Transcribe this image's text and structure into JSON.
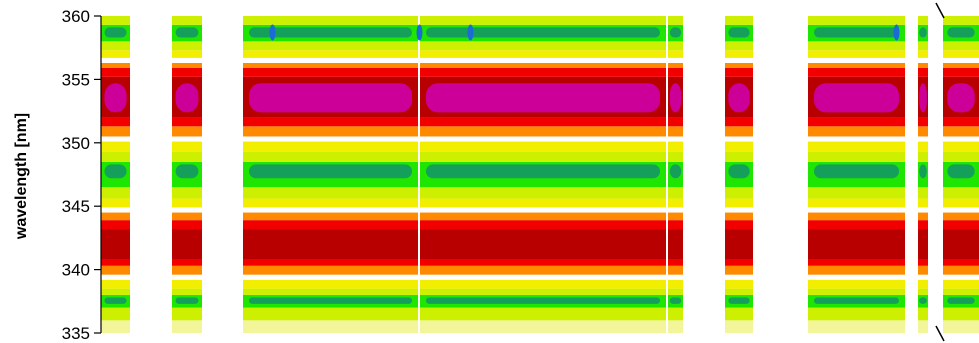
{
  "chart_data": {
    "type": "heatmap",
    "title": "",
    "xlabel": "",
    "ylabel": "wavelength [nm]",
    "ylim": [
      335,
      360
    ],
    "yticks": [
      335,
      340,
      345,
      350,
      355,
      360
    ],
    "ytick_labels": [
      "335",
      "340",
      "345",
      "350",
      "355",
      "360"
    ],
    "grid": false,
    "legend": "none",
    "axis_break": true,
    "colors": {
      "white": "#ffffff",
      "pale_yellow": "#f3f59a",
      "yellow": "#f2ee00",
      "yellow_green": "#cdf000",
      "green": "#1ee600",
      "dark_green": "#14a05a",
      "orange": "#ff8a00",
      "red": "#f20000",
      "dark_red": "#b90000",
      "magenta": "#cc0099",
      "blue": "#1a6bd6"
    },
    "bands": [
      {
        "from": 335.0,
        "to": 336.0,
        "level": "pale_yellow"
      },
      {
        "from": 336.0,
        "to": 337.0,
        "level": "yellow_green"
      },
      {
        "from": 337.0,
        "to": 338.0,
        "level": "green"
      },
      {
        "from": 338.0,
        "to": 338.5,
        "level": "yellow_green"
      },
      {
        "from": 338.5,
        "to": 339.2,
        "level": "yellow"
      },
      {
        "from": 339.2,
        "to": 339.6,
        "level": "white"
      },
      {
        "from": 339.6,
        "to": 340.3,
        "level": "orange"
      },
      {
        "from": 340.3,
        "to": 340.8,
        "level": "red"
      },
      {
        "from": 340.8,
        "to": 343.2,
        "level": "dark_red"
      },
      {
        "from": 343.2,
        "to": 343.9,
        "level": "red"
      },
      {
        "from": 343.9,
        "to": 344.5,
        "level": "orange"
      },
      {
        "from": 344.5,
        "to": 344.9,
        "level": "white"
      },
      {
        "from": 344.9,
        "to": 345.6,
        "level": "yellow"
      },
      {
        "from": 345.6,
        "to": 346.5,
        "level": "yellow_green"
      },
      {
        "from": 346.5,
        "to": 348.5,
        "level": "green"
      },
      {
        "from": 348.5,
        "to": 349.3,
        "level": "yellow_green"
      },
      {
        "from": 349.3,
        "to": 350.1,
        "level": "yellow"
      },
      {
        "from": 350.1,
        "to": 350.5,
        "level": "white"
      },
      {
        "from": 350.5,
        "to": 351.3,
        "level": "orange"
      },
      {
        "from": 351.3,
        "to": 352.0,
        "level": "red"
      },
      {
        "from": 352.0,
        "to": 355.2,
        "level": "dark_red"
      },
      {
        "from": 355.2,
        "to": 355.9,
        "level": "red"
      },
      {
        "from": 355.9,
        "to": 356.3,
        "level": "orange"
      },
      {
        "from": 356.3,
        "to": 356.7,
        "level": "white"
      },
      {
        "from": 356.7,
        "to": 357.3,
        "level": "yellow"
      },
      {
        "from": 357.3,
        "to": 358.0,
        "level": "yellow_green"
      },
      {
        "from": 358.0,
        "to": 359.3,
        "level": "green"
      },
      {
        "from": 359.3,
        "to": 360.0,
        "level": "yellow_green"
      }
    ],
    "cores": [
      {
        "from": 341.3,
        "to": 342.8,
        "level": "dark_red"
      },
      {
        "from": 352.4,
        "to": 354.7,
        "level": "magenta"
      },
      {
        "from": 347.2,
        "to": 348.3,
        "level": "dark_green"
      },
      {
        "from": 358.3,
        "to": 359.1,
        "level": "dark_green"
      },
      {
        "from": 337.3,
        "to": 337.8,
        "level": "dark_green"
      }
    ]
  }
}
